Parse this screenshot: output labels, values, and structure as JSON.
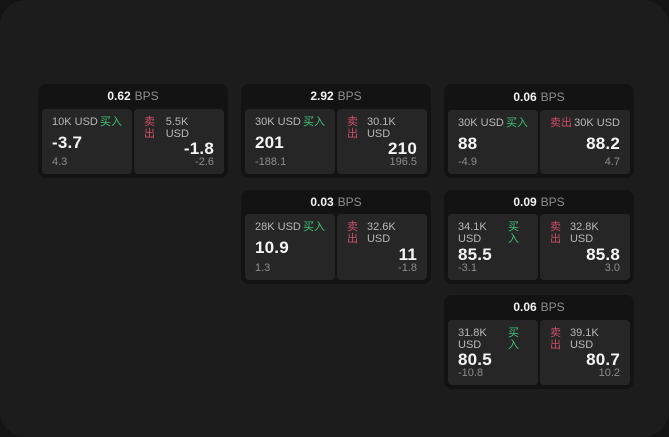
{
  "window": {
    "outer_bg": "#141414",
    "panel_bg": "#1c1c1c"
  },
  "labels": {
    "bps_unit": "BPS",
    "buy": "买入",
    "sell": "卖出"
  },
  "colors": {
    "buy_green": "#3fc377",
    "sell_red": "#cc4f66",
    "value_white": "#f5f5f5",
    "muted_gray": "#8d8d8d"
  },
  "cards": [
    {
      "col": 1,
      "row": 1,
      "bps": "0.62",
      "buy": {
        "size": "10K USD",
        "value": "-3.7",
        "delta": "4.3"
      },
      "sell": {
        "size": "5.5K USD",
        "value": "-1.8",
        "delta": "-2.6"
      }
    },
    {
      "col": 2,
      "row": 1,
      "bps": "2.92",
      "buy": {
        "size": "30K USD",
        "value": "201",
        "delta": "-188.1"
      },
      "sell": {
        "size": "30.1K USD",
        "value": "210",
        "delta": "196.5"
      }
    },
    {
      "col": 3,
      "row": 1,
      "bps": "0.06",
      "buy": {
        "size": "30K USD",
        "value": "88",
        "delta": "-4.9"
      },
      "sell": {
        "size": "30K USD",
        "value": "88.2",
        "delta": "4.7"
      }
    },
    {
      "col": 2,
      "row": 2,
      "bps": "0.03",
      "buy": {
        "size": "28K USD",
        "value": "10.9",
        "delta": "1.3"
      },
      "sell": {
        "size": "32.6K USD",
        "value": "11",
        "delta": "-1.8"
      }
    },
    {
      "col": 3,
      "row": 2,
      "bps": "0.09",
      "buy": {
        "size": "34.1K USD",
        "value": "85.5",
        "delta": "-3.1"
      },
      "sell": {
        "size": "32.8K USD",
        "value": "85.8",
        "delta": "3.0"
      }
    },
    {
      "col": 3,
      "row": 3,
      "bps": "0.06",
      "buy": {
        "size": "31.8K USD",
        "value": "80.5",
        "delta": "-10.8"
      },
      "sell": {
        "size": "39.1K USD",
        "value": "80.7",
        "delta": "10.2"
      }
    }
  ]
}
